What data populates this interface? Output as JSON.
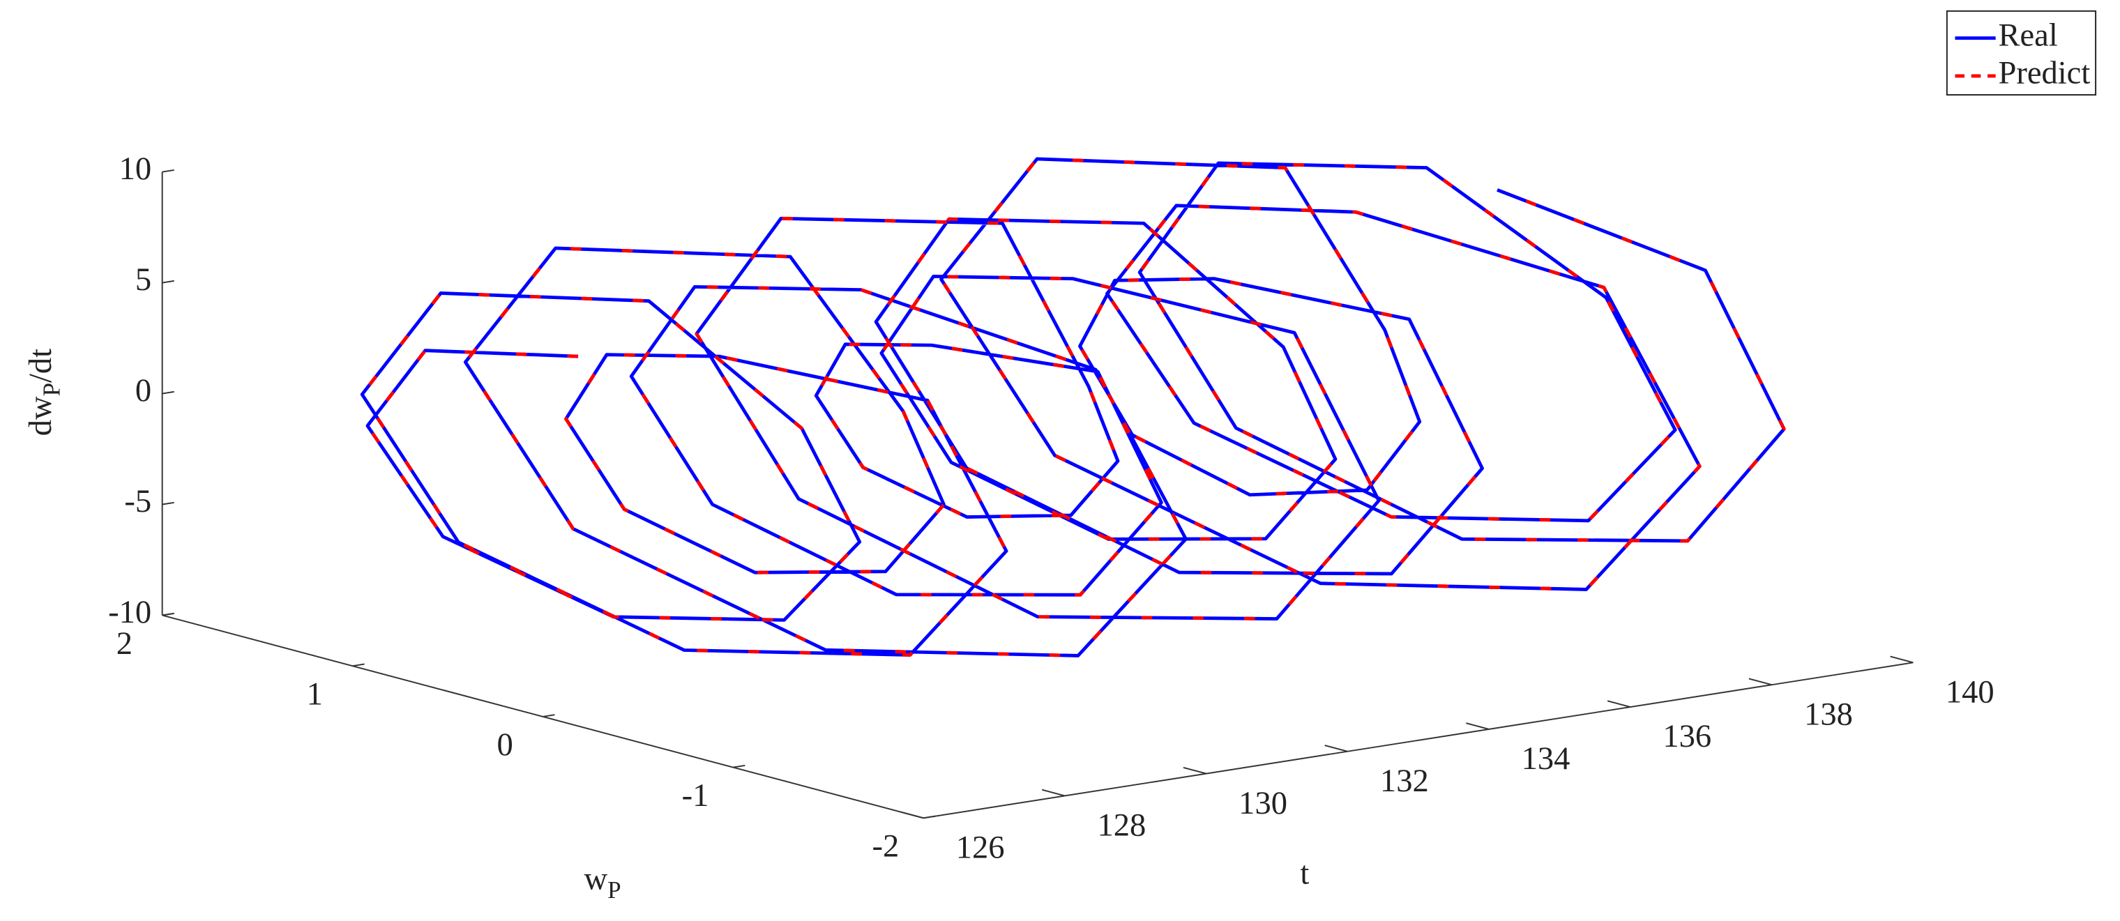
{
  "chart_data": {
    "type": "line3d",
    "x_label": "t",
    "y_label": {
      "main": "w",
      "sub": "P"
    },
    "z_label": {
      "main": "dw",
      "sub": "P",
      "rest": "/dt"
    },
    "xlim": [
      126,
      140
    ],
    "ylim": [
      -2,
      2
    ],
    "zlim": [
      -10,
      10
    ],
    "xticks": [
      126,
      128,
      130,
      132,
      134,
      136,
      138,
      140
    ],
    "yticks": [
      -2,
      -1,
      0,
      1,
      2
    ],
    "zticks": [
      -10,
      -5,
      0,
      5,
      10
    ],
    "legend": "top-right",
    "x": [
      126.5,
      126.625,
      126.75,
      126.875,
      127,
      127.125,
      127.25,
      127.375,
      127.5,
      127.625,
      127.75,
      127.875,
      128,
      128.125,
      128.25,
      128.375,
      128.5,
      128.625,
      128.75,
      128.875,
      129,
      129.125,
      129.25,
      129.375,
      129.5,
      129.625,
      129.75,
      129.875,
      130,
      130.125,
      130.25,
      130.375,
      130.5,
      130.625,
      130.75,
      130.875,
      131,
      131.125,
      131.25,
      131.375,
      131.5,
      131.625,
      131.75,
      131.875,
      132,
      132.125,
      132.25,
      132.375,
      132.5,
      132.625,
      132.75,
      132.875,
      133,
      133.125,
      133.25,
      133.375,
      133.5,
      133.625,
      133.75,
      133.875,
      134,
      134.125,
      134.25,
      134.375,
      134.5,
      134.625,
      134.75,
      134.875,
      135,
      135.125,
      135.25,
      135.375,
      135.5,
      135.625,
      135.75,
      135.875,
      136,
      136.125,
      136.25,
      136.375,
      136.5,
      136.625,
      136.75,
      136.875,
      137,
      137.125,
      137.25,
      137.375,
      137.5,
      137.625,
      137.75,
      137.875,
      138,
      138.125,
      138.25,
      138.375,
      138.5,
      138.625,
      138.75,
      138.875,
      139,
      139.125,
      139.25,
      139.375,
      139.5
    ],
    "y": [
      0,
      0.85,
      1.2,
      0.85,
      0,
      -0.85,
      -1.2,
      -0.85,
      0,
      1.14,
      1.6,
      1.14,
      0,
      -1.14,
      -1.6,
      -1.14,
      0,
      0.64,
      0.9,
      0.64,
      0,
      -0.64,
      -0.9,
      -0.64,
      0,
      1.28,
      1.8,
      1.28,
      0,
      -1.28,
      -1.8,
      -1.28,
      0,
      0.92,
      1.3,
      0.92,
      0,
      -0.92,
      -1.3,
      -0.92,
      0,
      0.5,
      0.7,
      0.5,
      0,
      -0.5,
      -0.7,
      -0.5,
      0,
      1.21,
      1.7,
      1.21,
      0,
      -1.21,
      -1.7,
      -1.21,
      0,
      0.78,
      1.1,
      0.78,
      0,
      -0.78,
      -1.1,
      -0.78,
      0,
      1.07,
      1.5,
      1.07,
      0,
      -1.07,
      -1.5,
      -1.07,
      0,
      0.57,
      0.8,
      0.57,
      0,
      -0.57,
      -0.8,
      -0.57,
      0,
      1.35,
      1.9,
      1.35,
      0,
      -1.35,
      -1.9,
      -1.35,
      0,
      0.99,
      1.4,
      0.99,
      0,
      -0.99,
      -1.4,
      -0.99,
      0,
      1.14,
      1.6,
      1.14,
      0,
      -1.14,
      -1.6,
      -1.14,
      0
    ],
    "series": [
      {
        "name": "Real",
        "color": "#0000ff",
        "dash": false,
        "values": [
          6,
          4.26,
          0,
          -4.26,
          -6,
          -4.26,
          0,
          4.26,
          8,
          5.68,
          0,
          -5.68,
          -8,
          -5.68,
          0,
          5.68,
          5,
          3.55,
          0,
          -3.55,
          -5,
          -3.55,
          0,
          3.55,
          9,
          6.39,
          0,
          -6.39,
          -9,
          -6.39,
          0,
          6.39,
          7,
          4.97,
          0,
          -4.97,
          -7,
          -4.97,
          0,
          4.97,
          4,
          2.84,
          0,
          -2.84,
          -4,
          -2.84,
          0,
          2.84,
          9,
          6.39,
          0,
          -6.39,
          -9,
          -6.39,
          0,
          6.39,
          6,
          4.26,
          0,
          -4.26,
          -6,
          -4.26,
          0,
          4.26,
          8,
          5.68,
          0,
          -5.68,
          -8,
          -5.68,
          0,
          5.68,
          5,
          3.55,
          0,
          -3.55,
          -5,
          -3.55,
          0,
          3.55,
          9.5,
          6.75,
          0,
          -6.75,
          -9.5,
          -6.75,
          0,
          6.75,
          7,
          4.97,
          0,
          -4.97,
          -7,
          -4.97,
          0,
          4.97,
          8.5,
          6.04,
          0,
          -6.04,
          -8.5,
          -6.04,
          0,
          6.04,
          7
        ]
      },
      {
        "name": "Predict",
        "color": "#ff0000",
        "dash": true,
        "values": [
          6,
          4.26,
          0,
          -4.26,
          -6,
          -4.26,
          0,
          4.26,
          8,
          5.68,
          0,
          -5.68,
          -8,
          -5.68,
          0,
          5.68,
          5,
          3.55,
          0,
          -3.55,
          -5,
          -3.55,
          0,
          3.55,
          9,
          6.39,
          0,
          -6.39,
          -9,
          -6.39,
          0,
          6.39,
          7,
          4.97,
          0,
          -4.97,
          -7,
          -4.97,
          0,
          4.97,
          4,
          2.84,
          0,
          -2.84,
          -4,
          -2.84,
          0,
          2.84,
          9,
          6.39,
          0,
          -6.39,
          -9,
          -6.39,
          0,
          6.39,
          6,
          4.26,
          0,
          -4.26,
          -6,
          -4.26,
          0,
          4.26,
          8,
          5.68,
          0,
          -5.68,
          -8,
          -5.68,
          0,
          5.68,
          5,
          3.55,
          0,
          -3.55,
          -5,
          -3.55,
          0,
          3.55,
          9.5,
          6.75,
          0,
          -6.75,
          -9.5,
          -6.75,
          0,
          6.75,
          7,
          4.97,
          0,
          -4.97,
          -7,
          -4.97,
          0,
          4.97,
          8.5,
          6.04,
          0,
          -6.04,
          -8.5,
          -6.04,
          0,
          6.04,
          7
        ]
      }
    ]
  }
}
